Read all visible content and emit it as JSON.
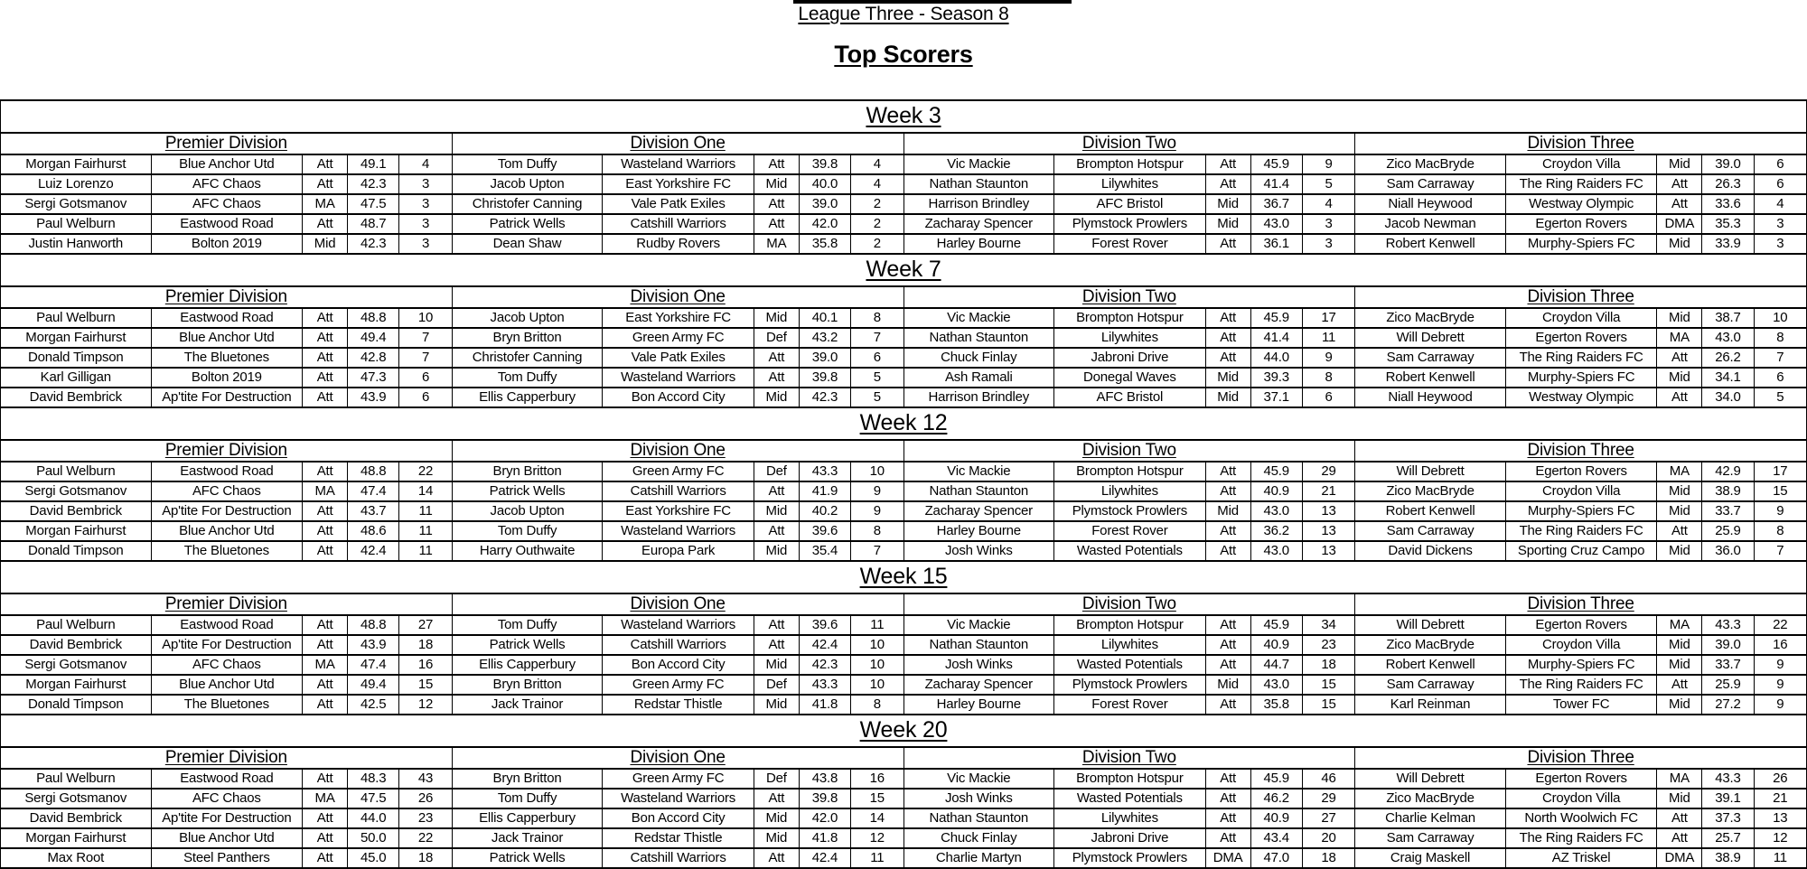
{
  "header": {
    "league_title": "League Three - Season 8",
    "page_title": "Top Scorers"
  },
  "weeks": [
    {
      "label": "Week 3",
      "divisions": [
        {
          "name": "Premier Division",
          "rows": [
            [
              "Morgan Fairhurst",
              "Blue Anchor Utd",
              "Att",
              "49.1",
              "4"
            ],
            [
              "Luiz Lorenzo",
              "AFC Chaos",
              "Att",
              "42.3",
              "3"
            ],
            [
              "Sergi Gotsmanov",
              "AFC Chaos",
              "MA",
              "47.5",
              "3"
            ],
            [
              "Paul Welburn",
              "Eastwood Road",
              "Att",
              "48.7",
              "3"
            ],
            [
              "Justin Hanworth",
              "Bolton 2019",
              "Mid",
              "42.3",
              "3"
            ]
          ]
        },
        {
          "name": "Division One",
          "rows": [
            [
              "Tom Duffy",
              "Wasteland Warriors",
              "Att",
              "39.8",
              "4"
            ],
            [
              "Jacob Upton",
              "East Yorkshire FC",
              "Mid",
              "40.0",
              "4"
            ],
            [
              "Christofer Canning",
              "Vale Patk Exiles",
              "Att",
              "39.0",
              "2"
            ],
            [
              "Patrick Wells",
              "Catshill Warriors",
              "Att",
              "42.0",
              "2"
            ],
            [
              "Dean Shaw",
              "Rudby Rovers",
              "MA",
              "35.8",
              "2"
            ]
          ]
        },
        {
          "name": "Division Two",
          "rows": [
            [
              "Vic Mackie",
              "Brompton Hotspur",
              "Att",
              "45.9",
              "9"
            ],
            [
              "Nathan Staunton",
              "Lilywhites",
              "Att",
              "41.4",
              "5"
            ],
            [
              "Harrison Brindley",
              "AFC Bristol",
              "Mid",
              "36.7",
              "4"
            ],
            [
              "Zacharay Spencer",
              "Plymstock Prowlers",
              "Mid",
              "43.0",
              "3"
            ],
            [
              "Harley Bourne",
              "Forest Rover",
              "Att",
              "36.1",
              "3"
            ]
          ]
        },
        {
          "name": "Division Three",
          "rows": [
            [
              "Zico MacBryde",
              "Croydon Villa",
              "Mid",
              "39.0",
              "6"
            ],
            [
              "Sam Carraway",
              "The Ring Raiders FC",
              "Att",
              "26.3",
              "6"
            ],
            [
              "Niall Heywood",
              "Westway Olympic",
              "Att",
              "33.6",
              "4"
            ],
            [
              "Jacob Newman",
              "Egerton Rovers",
              "DMA",
              "35.3",
              "3"
            ],
            [
              "Robert Kenwell",
              "Murphy-Spiers FC",
              "Mid",
              "33.9",
              "3"
            ]
          ]
        }
      ]
    },
    {
      "label": "Week 7",
      "divisions": [
        {
          "name": "Premier Division",
          "rows": [
            [
              "Paul Welburn",
              "Eastwood Road",
              "Att",
              "48.8",
              "10"
            ],
            [
              "Morgan Fairhurst",
              "Blue Anchor Utd",
              "Att",
              "49.4",
              "7"
            ],
            [
              "Donald Timpson",
              "The Bluetones",
              "Att",
              "42.8",
              "7"
            ],
            [
              "Karl Gilligan",
              "Bolton 2019",
              "Att",
              "47.3",
              "6"
            ],
            [
              "David Bembrick",
              "Ap'tite For Destruction",
              "Att",
              "43.9",
              "6"
            ]
          ]
        },
        {
          "name": "Division One",
          "rows": [
            [
              "Jacob Upton",
              "East Yorkshire FC",
              "Mid",
              "40.1",
              "8"
            ],
            [
              "Bryn Britton",
              "Green Army FC",
              "Def",
              "43.2",
              "7"
            ],
            [
              "Christofer Canning",
              "Vale Patk Exiles",
              "Att",
              "39.0",
              "6"
            ],
            [
              "Tom Duffy",
              "Wasteland Warriors",
              "Att",
              "39.8",
              "5"
            ],
            [
              "Ellis Capperbury",
              "Bon Accord City",
              "Mid",
              "42.3",
              "5"
            ]
          ]
        },
        {
          "name": "Division Two",
          "rows": [
            [
              "Vic Mackie",
              "Brompton Hotspur",
              "Att",
              "45.9",
              "17"
            ],
            [
              "Nathan Staunton",
              "Lilywhites",
              "Att",
              "41.4",
              "11"
            ],
            [
              "Chuck Finlay",
              "Jabroni Drive",
              "Att",
              "44.0",
              "9"
            ],
            [
              "Ash Ramali",
              "Donegal Waves",
              "Mid",
              "39.3",
              "8"
            ],
            [
              "Harrison Brindley",
              "AFC Bristol",
              "Mid",
              "37.1",
              "6"
            ]
          ]
        },
        {
          "name": "Division Three",
          "rows": [
            [
              "Zico MacBryde",
              "Croydon Villa",
              "Mid",
              "38.7",
              "10"
            ],
            [
              "Will Debrett",
              "Egerton Rovers",
              "MA",
              "43.0",
              "8"
            ],
            [
              "Sam Carraway",
              "The Ring Raiders FC",
              "Att",
              "26.2",
              "7"
            ],
            [
              "Robert Kenwell",
              "Murphy-Spiers FC",
              "Mid",
              "34.1",
              "6"
            ],
            [
              "Niall Heywood",
              "Westway Olympic",
              "Att",
              "34.0",
              "5"
            ]
          ]
        }
      ]
    },
    {
      "label": "Week 12",
      "divisions": [
        {
          "name": "Premier Division",
          "rows": [
            [
              "Paul Welburn",
              "Eastwood Road",
              "Att",
              "48.8",
              "22"
            ],
            [
              "Sergi Gotsmanov",
              "AFC Chaos",
              "MA",
              "47.4",
              "14"
            ],
            [
              "David Bembrick",
              "Ap'tite For Destruction",
              "Att",
              "43.7",
              "11"
            ],
            [
              "Morgan Fairhurst",
              "Blue Anchor Utd",
              "Att",
              "48.6",
              "11"
            ],
            [
              "Donald Timpson",
              "The Bluetones",
              "Att",
              "42.4",
              "11"
            ]
          ]
        },
        {
          "name": "Division One",
          "rows": [
            [
              "Bryn Britton",
              "Green Army FC",
              "Def",
              "43.3",
              "10"
            ],
            [
              "Patrick Wells",
              "Catshill Warriors",
              "Att",
              "41.9",
              "9"
            ],
            [
              "Jacob Upton",
              "East Yorkshire FC",
              "Mid",
              "40.2",
              "9"
            ],
            [
              "Tom Duffy",
              "Wasteland Warriors",
              "Att",
              "39.6",
              "8"
            ],
            [
              "Harry Outhwaite",
              "Europa Park",
              "Mid",
              "35.4",
              "7"
            ]
          ]
        },
        {
          "name": "Division Two",
          "rows": [
            [
              "Vic Mackie",
              "Brompton Hotspur",
              "Att",
              "45.9",
              "29"
            ],
            [
              "Nathan Staunton",
              "Lilywhites",
              "Att",
              "40.9",
              "21"
            ],
            [
              "Zacharay Spencer",
              "Plymstock Prowlers",
              "Mid",
              "43.0",
              "13"
            ],
            [
              "Harley Bourne",
              "Forest Rover",
              "Att",
              "36.2",
              "13"
            ],
            [
              "Josh Winks",
              "Wasted Potentials",
              "Att",
              "43.0",
              "13"
            ]
          ]
        },
        {
          "name": "Division Three",
          "rows": [
            [
              "Will Debrett",
              "Egerton Rovers",
              "MA",
              "42.9",
              "17"
            ],
            [
              "Zico MacBryde",
              "Croydon Villa",
              "Mid",
              "38.9",
              "15"
            ],
            [
              "Robert Kenwell",
              "Murphy-Spiers FC",
              "Mid",
              "33.7",
              "9"
            ],
            [
              "Sam Carraway",
              "The Ring Raiders FC",
              "Att",
              "25.9",
              "8"
            ],
            [
              "David Dickens",
              "Sporting Cruz Campo",
              "Mid",
              "36.0",
              "7"
            ]
          ]
        }
      ]
    },
    {
      "label": "Week 15",
      "divisions": [
        {
          "name": "Premier Division",
          "rows": [
            [
              "Paul Welburn",
              "Eastwood Road",
              "Att",
              "48.8",
              "27"
            ],
            [
              "David Bembrick",
              "Ap'tite For Destruction",
              "Att",
              "43.9",
              "18"
            ],
            [
              "Sergi Gotsmanov",
              "AFC Chaos",
              "MA",
              "47.4",
              "16"
            ],
            [
              "Morgan Fairhurst",
              "Blue Anchor Utd",
              "Att",
              "49.4",
              "15"
            ],
            [
              "Donald Timpson",
              "The Bluetones",
              "Att",
              "42.5",
              "12"
            ]
          ]
        },
        {
          "name": "Division One",
          "rows": [
            [
              "Tom Duffy",
              "Wasteland Warriors",
              "Att",
              "39.6",
              "11"
            ],
            [
              "Patrick Wells",
              "Catshill Warriors",
              "Att",
              "42.4",
              "10"
            ],
            [
              "Ellis Capperbury",
              "Bon Accord City",
              "Mid",
              "42.3",
              "10"
            ],
            [
              "Bryn Britton",
              "Green Army FC",
              "Def",
              "43.3",
              "10"
            ],
            [
              "Jack Trainor",
              "Redstar Thistle",
              "Mid",
              "41.8",
              "8"
            ]
          ]
        },
        {
          "name": "Division Two",
          "rows": [
            [
              "Vic Mackie",
              "Brompton Hotspur",
              "Att",
              "45.9",
              "34"
            ],
            [
              "Nathan Staunton",
              "Lilywhites",
              "Att",
              "40.9",
              "23"
            ],
            [
              "Josh Winks",
              "Wasted Potentials",
              "Att",
              "44.7",
              "18"
            ],
            [
              "Zacharay Spencer",
              "Plymstock Prowlers",
              "Mid",
              "43.0",
              "15"
            ],
            [
              "Harley Bourne",
              "Forest Rover",
              "Att",
              "35.8",
              "15"
            ]
          ]
        },
        {
          "name": "Division Three",
          "rows": [
            [
              "Will Debrett",
              "Egerton Rovers",
              "MA",
              "43.3",
              "22"
            ],
            [
              "Zico MacBryde",
              "Croydon Villa",
              "Mid",
              "39.0",
              "16"
            ],
            [
              "Robert Kenwell",
              "Murphy-Spiers FC",
              "Mid",
              "33.7",
              "9"
            ],
            [
              "Sam Carraway",
              "The Ring Raiders FC",
              "Att",
              "25.9",
              "9"
            ],
            [
              "Karl Reinman",
              "Tower FC",
              "Mid",
              "27.2",
              "9"
            ]
          ]
        }
      ]
    },
    {
      "label": "Week 20",
      "divisions": [
        {
          "name": "Premier Division",
          "rows": [
            [
              "Paul Welburn",
              "Eastwood Road",
              "Att",
              "48.3",
              "43"
            ],
            [
              "Sergi Gotsmanov",
              "AFC Chaos",
              "MA",
              "47.5",
              "26"
            ],
            [
              "David Bembrick",
              "Ap'tite For Destruction",
              "Att",
              "44.0",
              "23"
            ],
            [
              "Morgan Fairhurst",
              "Blue Anchor Utd",
              "Att",
              "50.0",
              "22"
            ],
            [
              "Max Root",
              "Steel Panthers",
              "Att",
              "45.0",
              "18"
            ]
          ]
        },
        {
          "name": "Division One",
          "rows": [
            [
              "Bryn Britton",
              "Green Army FC",
              "Def",
              "43.8",
              "16"
            ],
            [
              "Tom Duffy",
              "Wasteland Warriors",
              "Att",
              "39.8",
              "15"
            ],
            [
              "Ellis Capperbury",
              "Bon Accord City",
              "Mid",
              "42.0",
              "14"
            ],
            [
              "Jack Trainor",
              "Redstar Thistle",
              "Mid",
              "41.8",
              "12"
            ],
            [
              "Patrick Wells",
              "Catshill Warriors",
              "Att",
              "42.4",
              "11"
            ]
          ]
        },
        {
          "name": "Division Two",
          "rows": [
            [
              "Vic Mackie",
              "Brompton Hotspur",
              "Att",
              "45.9",
              "46"
            ],
            [
              "Josh Winks",
              "Wasted Potentials",
              "Att",
              "46.2",
              "29"
            ],
            [
              "Nathan Staunton",
              "Lilywhites",
              "Att",
              "40.9",
              "27"
            ],
            [
              "Chuck Finlay",
              "Jabroni Drive",
              "Att",
              "43.4",
              "20"
            ],
            [
              "Charlie Martyn",
              "Plymstock Prowlers",
              "DMA",
              "47.0",
              "18"
            ]
          ]
        },
        {
          "name": "Division Three",
          "rows": [
            [
              "Will Debrett",
              "Egerton Rovers",
              "MA",
              "43.3",
              "26"
            ],
            [
              "Zico MacBryde",
              "Croydon Villa",
              "Mid",
              "39.1",
              "21"
            ],
            [
              "Charlie Kelman",
              "North Woolwich FC",
              "Att",
              "37.3",
              "13"
            ],
            [
              "Sam Carraway",
              "The Ring Raiders FC",
              "Att",
              "25.7",
              "12"
            ],
            [
              "Craig Maskell",
              "AZ Triskel",
              "DMA",
              "38.9",
              "11"
            ]
          ]
        }
      ]
    }
  ]
}
